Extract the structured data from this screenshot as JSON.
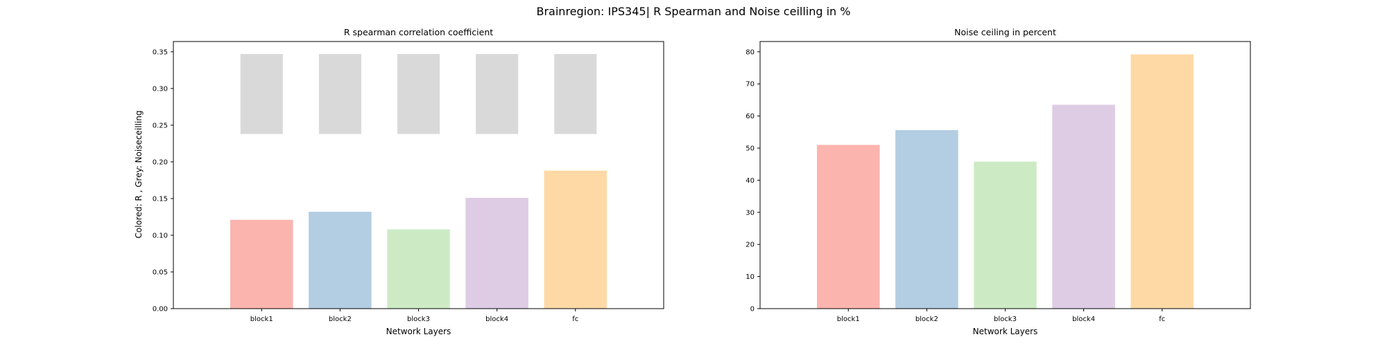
{
  "figure": {
    "suptitle": "Brainregion: IPS345| R Spearman and Noise ceilling in %",
    "palette": [
      "#fbb4ae",
      "#b3cde3",
      "#ccebc5",
      "#decbe4",
      "#fed9a6"
    ],
    "noise_color": "#d9d9d9"
  },
  "chart_data": [
    {
      "type": "bar",
      "title": "R spearman correlation coefficient",
      "xlabel": "Network Layers",
      "ylabel": "Colored: R , Grey: Noiseceilling",
      "categories": [
        "block1",
        "block2",
        "block3",
        "block4",
        "fc"
      ],
      "series": [
        {
          "values": [
            0.121,
            0.132,
            0.108,
            0.151,
            0.188
          ]
        }
      ],
      "noise_ceiling": {
        "lower": [
          0.238,
          0.238,
          0.238,
          0.238,
          0.238
        ],
        "upper": [
          0.347,
          0.347,
          0.347,
          0.347,
          0.347
        ]
      },
      "ylim": [
        0,
        0.364
      ],
      "yticks": [
        0.0,
        0.05,
        0.1,
        0.15,
        0.2,
        0.25,
        0.3,
        0.35
      ],
      "ytick_labels": [
        "0.00",
        "0.05",
        "0.10",
        "0.15",
        "0.20",
        "0.25",
        "0.30",
        "0.35"
      ],
      "grid": false,
      "legend": "none"
    },
    {
      "type": "bar",
      "title": "Noise ceiling in percent",
      "xlabel": "Network Layers",
      "ylabel": "",
      "categories": [
        "block1",
        "block2",
        "block3",
        "block4",
        "fc"
      ],
      "series": [
        {
          "values": [
            51.0,
            55.6,
            45.8,
            63.5,
            79.2
          ]
        }
      ],
      "ylim": [
        0,
        83.2
      ],
      "yticks": [
        0,
        10,
        20,
        30,
        40,
        50,
        60,
        70,
        80
      ],
      "ytick_labels": [
        "0",
        "10",
        "20",
        "30",
        "40",
        "50",
        "60",
        "70",
        "80"
      ],
      "grid": false,
      "legend": "none"
    }
  ]
}
